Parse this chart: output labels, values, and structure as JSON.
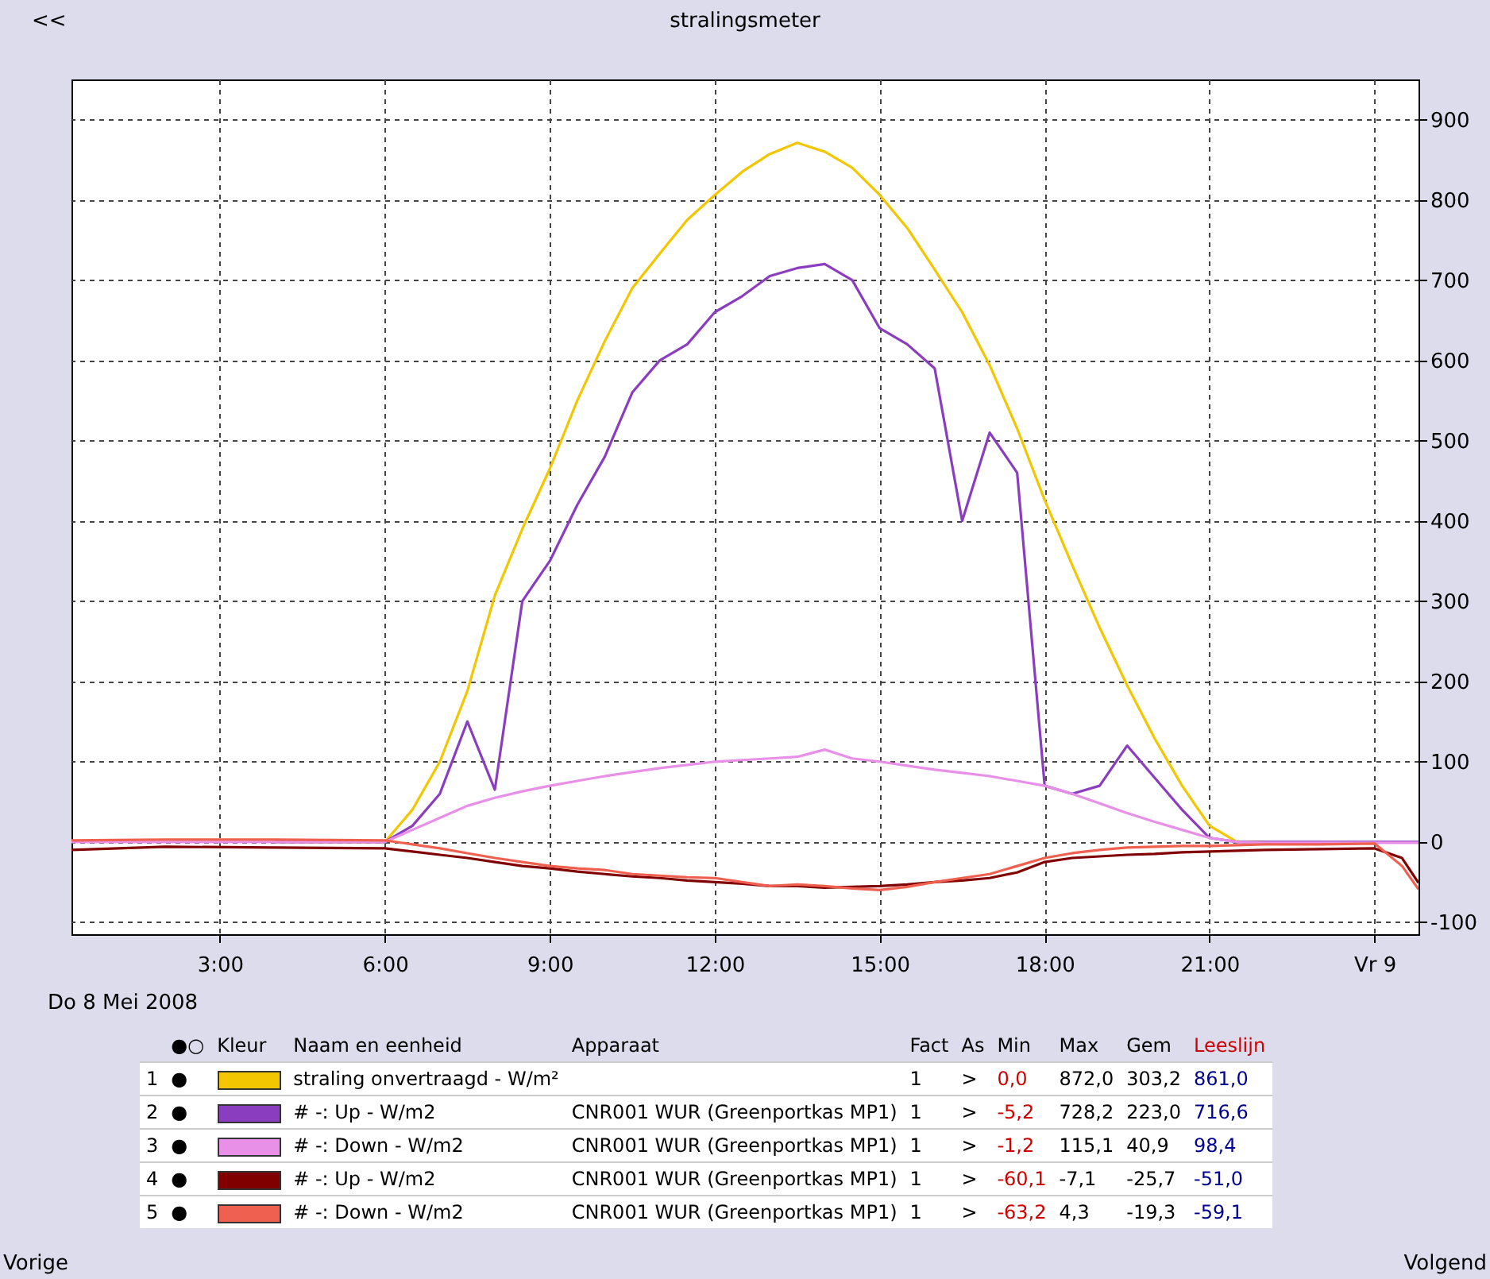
{
  "chart_data": {
    "type": "line",
    "title": "stralingsmeter",
    "xlabel": "Do 8  Mei 2008",
    "x": [
      0.3,
      2,
      4,
      6,
      6.5,
      7,
      7.5,
      8,
      8.5,
      9,
      9.5,
      10,
      10.5,
      11,
      11.5,
      12,
      12.5,
      13,
      13.5,
      14,
      14.5,
      15,
      15.5,
      16,
      16.5,
      17,
      17.5,
      18,
      18.5,
      19,
      19.5,
      20,
      20.5,
      21,
      21.5,
      22,
      23,
      24,
      24.5,
      24.8
    ],
    "series": [
      {
        "name": "straling onvertraagd - W/m²",
        "color": "#f2c600",
        "values": [
          null,
          null,
          0,
          0,
          40,
          100,
          188,
          307,
          390,
          465,
          550,
          624,
          690,
          733,
          775,
          806,
          835,
          857,
          871,
          860,
          840,
          806,
          765,
          713,
          660,
          594,
          515,
          426,
          345,
          267,
          195,
          129,
          70,
          20,
          0,
          0,
          null,
          null,
          null,
          null
        ]
      },
      {
        "name": "# -: Up - W/m2",
        "color": "#8a3dbf",
        "values": [
          null,
          null,
          0,
          0,
          20,
          60,
          150,
          65,
          300,
          350,
          420,
          480,
          560,
          600,
          620,
          660,
          680,
          705,
          715,
          720,
          700,
          640,
          620,
          590,
          400,
          510,
          460,
          70,
          60,
          70,
          120,
          80,
          40,
          5,
          0,
          0,
          0,
          0,
          0,
          0
        ]
      },
      {
        "name": "# -: Down - W/m2",
        "color": "#e890e8",
        "values": [
          0,
          0,
          0,
          0,
          15,
          30,
          45,
          55,
          63,
          70,
          76,
          82,
          87,
          92,
          96,
          100,
          102,
          104,
          106,
          115,
          104,
          100,
          95,
          90,
          86,
          82,
          76,
          70,
          60,
          48,
          36,
          25,
          15,
          5,
          0,
          -1,
          -1,
          -1,
          -1,
          -1
        ]
      },
      {
        "name": "# -: Up - W/m2",
        "color": "#800000",
        "values": [
          -10,
          -6,
          -7,
          -8,
          -12,
          -16,
          -20,
          -25,
          -30,
          -33,
          -37,
          -40,
          -43,
          -45,
          -48,
          -50,
          -52,
          -55,
          -55,
          -57,
          -56,
          -55,
          -53,
          -50,
          -48,
          -45,
          -38,
          -25,
          -20,
          -18,
          -16,
          -15,
          -13,
          -12,
          -11,
          -10,
          -9,
          -8,
          -20,
          -51
        ]
      },
      {
        "name": "# -: Down - W/m2",
        "color": "#f06050",
        "values": [
          2,
          3,
          3,
          2,
          -3,
          -8,
          -14,
          -20,
          -25,
          -30,
          -33,
          -35,
          -40,
          -42,
          -44,
          -45,
          -50,
          -55,
          -53,
          -55,
          -58,
          -60,
          -56,
          -50,
          -45,
          -40,
          -30,
          -20,
          -14,
          -10,
          -7,
          -6,
          -5,
          -5,
          -4,
          -3,
          -3,
          -2,
          -30,
          -59
        ]
      }
    ],
    "xlim": [
      0.3,
      24.8
    ],
    "ylim": [
      -115,
      950
    ],
    "xticks": [
      {
        "value": 3,
        "label": "3:00"
      },
      {
        "value": 6,
        "label": "6:00"
      },
      {
        "value": 9,
        "label": "9:00"
      },
      {
        "value": 12,
        "label": "12:00"
      },
      {
        "value": 15,
        "label": "15:00"
      },
      {
        "value": 18,
        "label": "18:00"
      },
      {
        "value": 21,
        "label": "21:00"
      },
      {
        "value": 24,
        "label": "Vr 9"
      }
    ],
    "yticks": [
      -100,
      0,
      100,
      200,
      300,
      400,
      500,
      600,
      700,
      800,
      900
    ],
    "grid": true,
    "legend": "bottom",
    "annotations": [
      "●○",
      "Kleur",
      "Naam en eenheid",
      "Apparaat",
      "Fact",
      "As",
      "Min",
      "Max",
      "Gem",
      "Leeslijn",
      "1",
      "●",
      null,
      "1",
      ">",
      "0,0",
      "872,0",
      "303,2",
      "861,0",
      "2",
      "●",
      "CNR001 WUR (Greenportkas MP1)",
      "1",
      ">",
      "-5,2",
      "728,2",
      "223,0",
      "716,6",
      "3",
      "●",
      "CNR001 WUR (Greenportkas MP1)",
      "1",
      ">",
      "-1,2",
      "115,1",
      "40,9",
      "98,4",
      "4",
      "●",
      "CNR001 WUR (Greenportkas MP1)",
      "1",
      ">",
      "-60,1",
      "-7,1",
      "-25,7",
      "-51,0",
      "5",
      "●",
      "CNR001 WUR (Greenportkas MP1)",
      "1",
      ">",
      "-63,2",
      "4,3",
      "-19,3",
      "-59,1",
      "<<",
      "Vorige",
      "Volgend"
    ]
  }
}
